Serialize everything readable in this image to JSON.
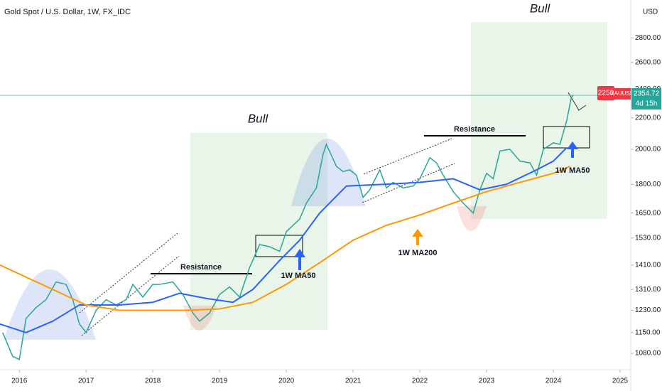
{
  "header": {
    "title": "Gold Spot / U.S. Dollar, 1W, FX_IDC",
    "symbol": "XAUUSD",
    "last_price": "2354.72",
    "countdown": "4d 15h",
    "target": 2250,
    "currency": "USD"
  },
  "annotations": {
    "bull_1": "Bull",
    "bull_2": "Bull",
    "resistance_1": "Resistance",
    "resistance_2": "Resistance",
    "ma50_1": "1W MA50",
    "ma50_2": "1W MA50",
    "ma200": "1W MA200"
  },
  "chart_data": {
    "type": "line",
    "log_scale": true,
    "grid": false,
    "xlim": [
      2015.71,
      2025.16
    ],
    "xticks": [
      2016,
      2017,
      2018,
      2019,
      2020,
      2021,
      2022,
      2023,
      2024,
      2025
    ],
    "ylim": [
      1028,
      3140
    ],
    "yticks": [
      {
        "value": 1080,
        "label": "1080.00"
      },
      {
        "value": 1150,
        "label": "1150.00"
      },
      {
        "value": 1230,
        "label": "1230.00"
      },
      {
        "value": 1310,
        "label": "1310.00"
      },
      {
        "value": 1410,
        "label": "1410.00"
      },
      {
        "value": 1530,
        "label": "1530.00"
      },
      {
        "value": 1650,
        "label": "1650.00"
      },
      {
        "value": 1800,
        "label": "1800.00"
      },
      {
        "value": 2000,
        "label": "2000.00"
      },
      {
        "value": 2200,
        "label": "2200.00"
      },
      {
        "value": 2400,
        "label": "2400.00"
      },
      {
        "value": 2600,
        "label": "2600.00"
      },
      {
        "value": 2800,
        "label": "2800.00"
      }
    ],
    "series": [
      {
        "color": "#26a69a",
        "x": [
          2015.75,
          2015.9,
          2016.0,
          2016.1,
          2016.25,
          2016.4,
          2016.55,
          2016.7,
          2016.8,
          2016.9,
          2017.0,
          2017.15,
          2017.3,
          2017.45,
          2017.6,
          2017.7,
          2017.85,
          2018.0,
          2018.1,
          2018.3,
          2018.45,
          2018.6,
          2018.7,
          2018.85,
          2019.0,
          2019.15,
          2019.3,
          2019.45,
          2019.6,
          2019.75,
          2019.9,
          2020.0,
          2020.1,
          2020.2,
          2020.3,
          2020.45,
          2020.55,
          2020.6,
          2020.75,
          2020.85,
          2020.95,
          2021.05,
          2021.15,
          2021.25,
          2021.4,
          2021.5,
          2021.6,
          2021.75,
          2021.9,
          2022.0,
          2022.15,
          2022.25,
          2022.35,
          2022.5,
          2022.65,
          2022.8,
          2022.9,
          2023.0,
          2023.1,
          2023.2,
          2023.35,
          2023.5,
          2023.65,
          2023.75,
          2023.85,
          2024.0,
          2024.1,
          2024.2,
          2024.27,
          2024.3
        ],
        "values": [
          1150,
          1070,
          1060,
          1200,
          1240,
          1270,
          1340,
          1330,
          1270,
          1180,
          1150,
          1230,
          1270,
          1250,
          1270,
          1330,
          1280,
          1330,
          1330,
          1340,
          1290,
          1220,
          1190,
          1220,
          1290,
          1320,
          1280,
          1400,
          1500,
          1490,
          1470,
          1560,
          1590,
          1620,
          1700,
          1780,
          1970,
          2030,
          1900,
          1870,
          1880,
          1850,
          1730,
          1770,
          1880,
          1780,
          1810,
          1780,
          1790,
          1830,
          1950,
          1920,
          1850,
          1760,
          1700,
          1650,
          1770,
          1860,
          1830,
          1990,
          2000,
          1930,
          1920,
          1850,
          2000,
          2040,
          2030,
          2180,
          2340,
          2355
        ]
      },
      {
        "color": "#2962ff",
        "x": [
          2015.71,
          2016.1,
          2016.5,
          2016.9,
          2017.5,
          2018.0,
          2018.4,
          2018.8,
          2019.2,
          2019.5,
          2019.9,
          2020.2,
          2020.5,
          2020.9,
          2021.5,
          2022.0,
          2022.5,
          2022.9,
          2023.3,
          2023.75,
          2024.0,
          2024.2
        ],
        "values": [
          1180,
          1150,
          1190,
          1250,
          1250,
          1260,
          1295,
          1275,
          1260,
          1310,
          1430,
          1520,
          1650,
          1790,
          1800,
          1810,
          1830,
          1770,
          1800,
          1880,
          1930,
          2010
        ]
      },
      {
        "color": "#ff9800",
        "x": [
          2015.71,
          2016.5,
          2017.0,
          2017.5,
          2018.5,
          2019.0,
          2019.5,
          2020.0,
          2020.5,
          2021.0,
          2021.5,
          2022.0,
          2022.5,
          2023.0,
          2023.5,
          2024.0,
          2024.25
        ],
        "values": [
          1410,
          1310,
          1250,
          1230,
          1230,
          1235,
          1260,
          1330,
          1420,
          1520,
          1590,
          1640,
          1700,
          1760,
          1810,
          1860,
          1900
        ]
      }
    ]
  }
}
